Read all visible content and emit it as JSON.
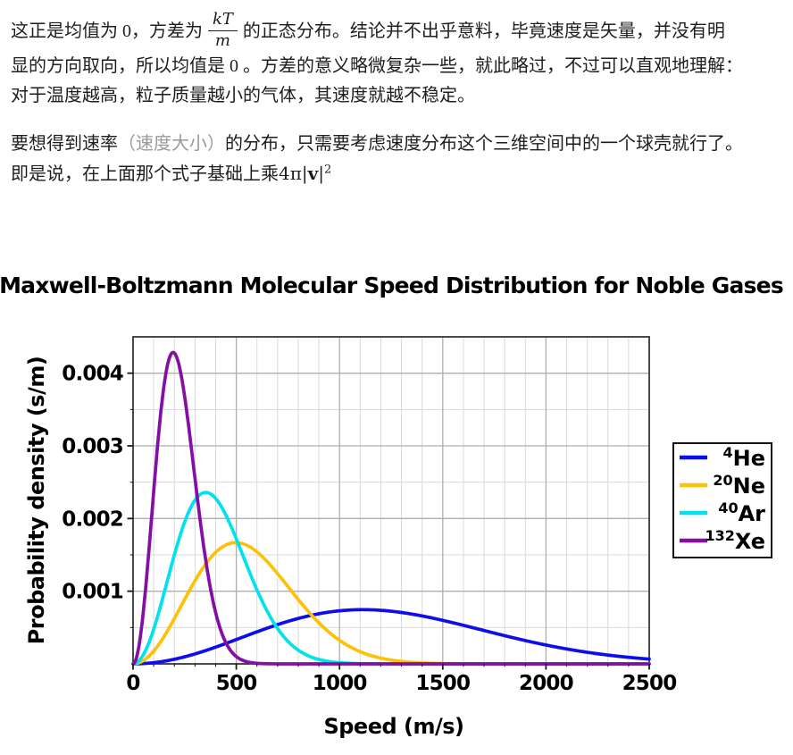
{
  "article": {
    "para1": {
      "l1a": "这正是均值为 0，方差为",
      "frac": {
        "num": "kT",
        "den": "m"
      },
      "l1b": "的正态分布。结论并不出乎意料，毕竟速度是矢量，并没有明",
      "l2": "显的方向取向，所以均值是 0 。方差的意义略微复杂一些，就此略过，不过可以直观地理解：",
      "l3": "对于温度越高，粒子质量越小的气体，其速度就越不稳定。"
    },
    "para2": {
      "l1a": "要想得到速率",
      "l1_paren": "（速度大小）",
      "l1b": "的分布，只需要考虑速度分布这个三维空间中的一个球壳就行了。",
      "l2a": "即是说，在上面那个式子基础上乘",
      "math": {
        "pre": "4π|",
        "v": "v",
        "post": "|",
        "sup": "2"
      }
    }
  },
  "chart_data": {
    "type": "line",
    "title": "Maxwell-Boltzmann Molecular Speed Distribution for Noble Gases",
    "xlabel": "Speed (m/s)",
    "ylabel": "Probability density (s/m)",
    "xlim": [
      0,
      2500
    ],
    "ylim": [
      0,
      0.0045
    ],
    "x_ticks": [
      0,
      500,
      1000,
      1500,
      2000,
      2500
    ],
    "y_ticks": [
      0.001,
      0.002,
      0.003,
      0.004
    ],
    "x_minor_step": 100,
    "y_minor_step": 0.0005,
    "grid": true,
    "legend_position": "center right",
    "curve_model": "maxwell_boltzmann_speed_pdf: f(v) = peak * u^2 * exp(1 - u^2), u = v / v_mp",
    "series": [
      {
        "label": "⁴He",
        "mass_number": "4",
        "element": "He",
        "color": "#0d0dee",
        "most_probable_speed_ms": 1113,
        "peak_density_sm": 0.000746
      },
      {
        "label": "²⁰Ne",
        "mass_number": "20",
        "element": "Ne",
        "color": "#fdc107",
        "most_probable_speed_ms": 498,
        "peak_density_sm": 0.001668
      },
      {
        "label": "⁴⁰Ar",
        "mass_number": "40",
        "element": "Ar",
        "color": "#00e2ee",
        "most_probable_speed_ms": 352,
        "peak_density_sm": 0.002359
      },
      {
        "label": "¹³²Xe",
        "mass_number": "132",
        "element": "Xe",
        "color": "#850fa4",
        "most_probable_speed_ms": 194,
        "peak_density_sm": 0.004286
      }
    ],
    "colors": {
      "grid_minor": "#d9d9d9",
      "grid_major": "#aeaeae",
      "spine": "#2b2b2b",
      "tick": "#1a1a1a"
    }
  }
}
